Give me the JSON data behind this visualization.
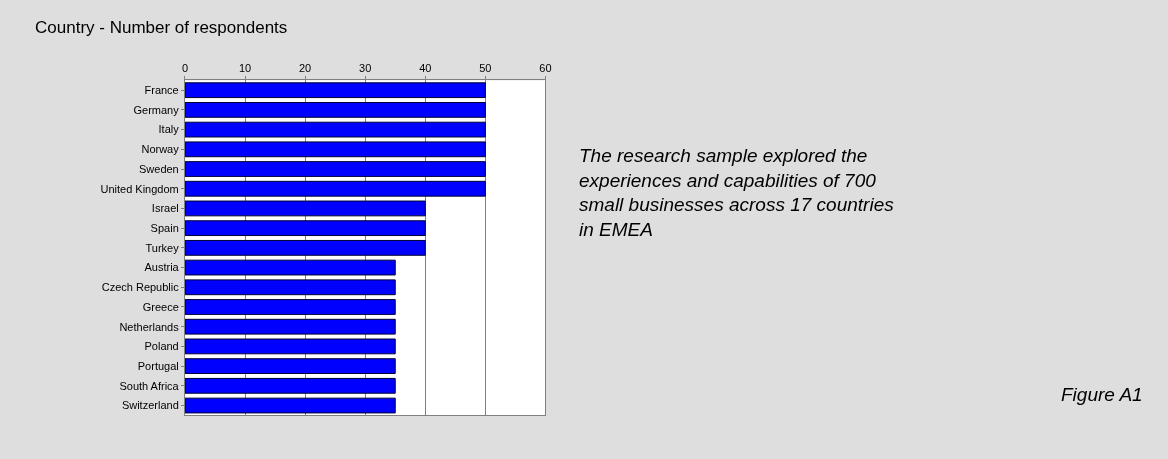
{
  "chart_data": {
    "type": "bar",
    "orientation": "horizontal",
    "title": "Country - Number of respondents",
    "categories": [
      "France",
      "Germany",
      "Italy",
      "Norway",
      "Sweden",
      "United Kingdom",
      "Israel",
      "Spain",
      "Turkey",
      "Austria",
      "Czech Republic",
      "Greece",
      "Netherlands",
      "Poland",
      "Portugal",
      "South Africa",
      "Switzerland"
    ],
    "values": [
      50,
      50,
      50,
      50,
      50,
      50,
      40,
      40,
      40,
      35,
      35,
      35,
      35,
      35,
      35,
      35,
      35
    ],
    "color": "#0000ff",
    "xlim": [
      0,
      60
    ],
    "xticks": [
      0,
      10,
      20,
      30,
      40,
      50,
      60
    ],
    "grid": "x",
    "legend": false,
    "annotations": [
      "The research sample explored the experiences and capabilities of 700 small businesses across 17 countries in EMEA",
      "Figure A1"
    ]
  }
}
